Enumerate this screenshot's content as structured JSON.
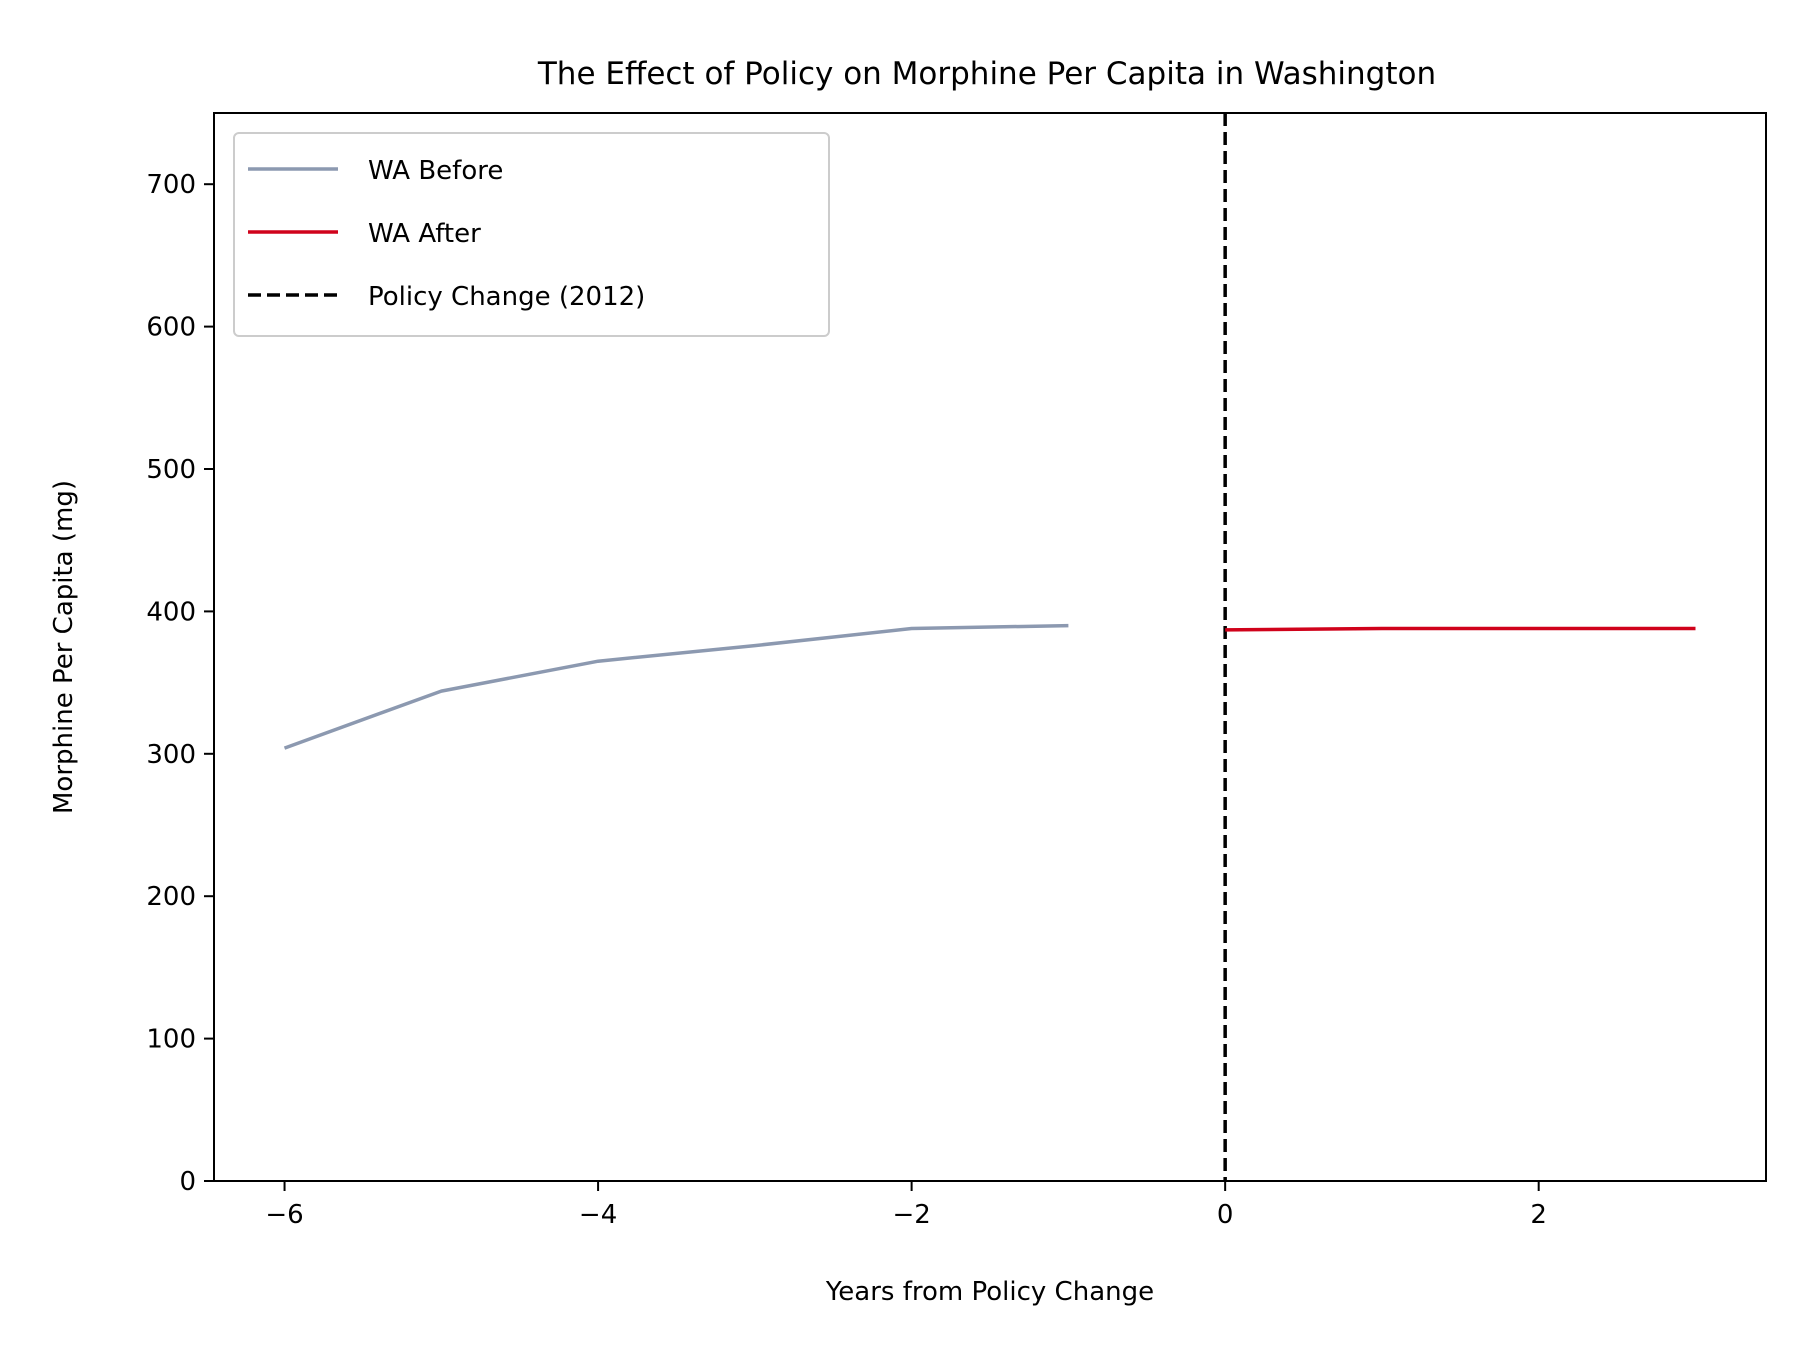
{
  "chart_data": {
    "type": "line",
    "title": "The Effect of Policy on Morphine Per Capita in Washington",
    "xlabel": "Years from Policy Change",
    "ylabel": "Morphine Per Capita (mg)",
    "xlim": [
      -6.45,
      3.45
    ],
    "ylim": [
      0,
      750
    ],
    "x_ticks": [
      -6,
      -4,
      -2,
      0,
      2
    ],
    "y_ticks": [
      0,
      100,
      200,
      300,
      400,
      500,
      600,
      700
    ],
    "grid": false,
    "legend_position": "upper-left",
    "series": [
      {
        "name": "WA Before",
        "color": "#8c99b0",
        "style": "solid",
        "x": [
          -6,
          -5,
          -4,
          -3,
          -2,
          -1
        ],
        "y": [
          304,
          344,
          365,
          376,
          388,
          390
        ]
      },
      {
        "name": "WA After",
        "color": "#d0021b",
        "style": "solid",
        "x": [
          0,
          1,
          2,
          3
        ],
        "y": [
          387,
          388,
          388,
          388
        ]
      }
    ],
    "vlines": [
      {
        "name": "Policy Change (2012)",
        "x": 0,
        "color": "#000000",
        "style": "dashed"
      }
    ]
  }
}
